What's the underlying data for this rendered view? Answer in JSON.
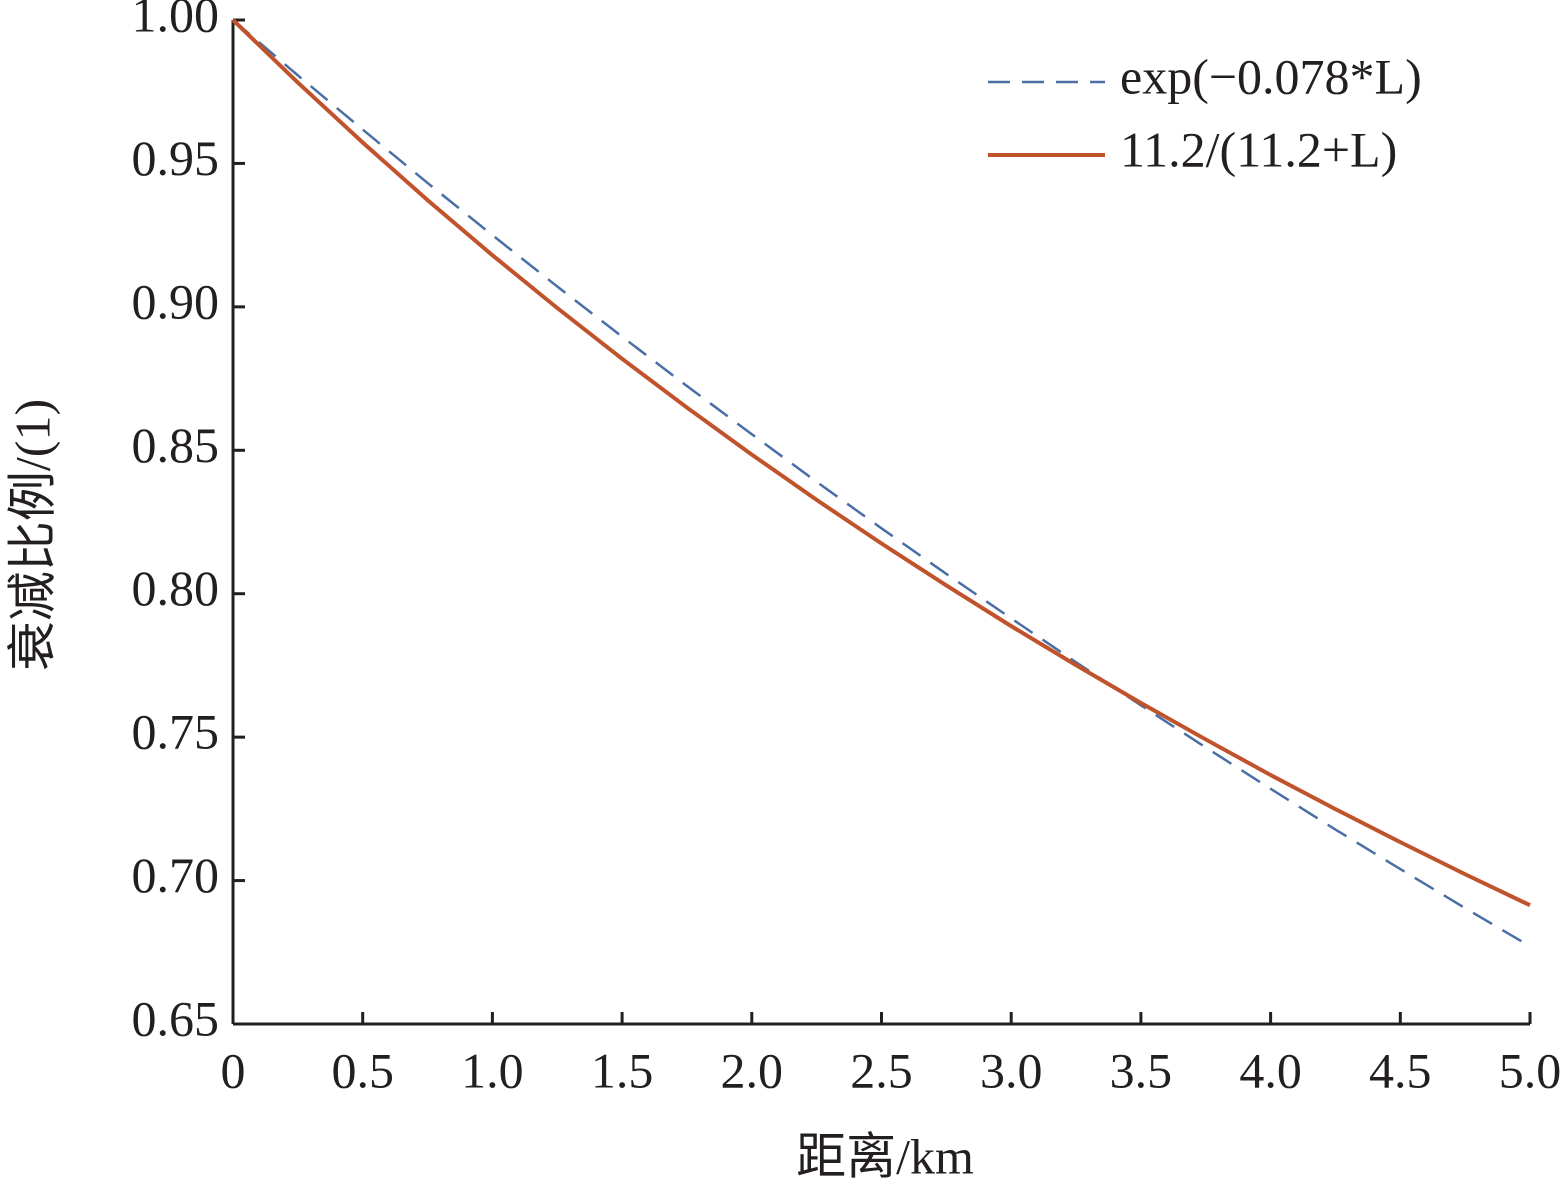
{
  "chart_data": {
    "type": "line",
    "x_label": "距离/km",
    "y_label": "衰减比例/(1)",
    "x": [
      0,
      0.25,
      0.5,
      0.75,
      1.0,
      1.25,
      1.5,
      1.75,
      2.0,
      2.25,
      2.5,
      2.75,
      3.0,
      3.25,
      3.5,
      3.75,
      4.0,
      4.25,
      4.5,
      4.75,
      5.0
    ],
    "series": [
      {
        "name": "exp(−0.078*L)",
        "color": "#4a6fa5",
        "style": "dashed",
        "values": [
          1,
          0.9807,
          0.9618,
          0.9432,
          0.925,
          0.9071,
          0.8896,
          0.8724,
          0.8556,
          0.839,
          0.8228,
          0.8069,
          0.7914,
          0.7761,
          0.7611,
          0.7464,
          0.732,
          0.7178,
          0.704,
          0.6904,
          0.6771
        ]
      },
      {
        "name": "11.2/(11.2+L)",
        "color": "#c0532b",
        "style": "solid",
        "values": [
          1,
          0.9782,
          0.9573,
          0.9372,
          0.918,
          0.8996,
          0.8819,
          0.8649,
          0.8485,
          0.8327,
          0.8175,
          0.8029,
          0.7887,
          0.7751,
          0.7619,
          0.7492,
          0.7368,
          0.7249,
          0.7134,
          0.7022,
          0.6914
        ]
      }
    ],
    "xlim": [
      0,
      5
    ],
    "ylim": [
      0.65,
      1
    ],
    "xticks": [
      0,
      0.5,
      {
        "value": 1,
        "label": "1.0"
      },
      1.5,
      {
        "value": 2,
        "label": "2.0"
      },
      2.5,
      {
        "value": 3,
        "label": "3.0"
      },
      3.5,
      {
        "value": 4,
        "label": "4.0"
      },
      4.5,
      {
        "value": 5,
        "label": "5.0"
      }
    ],
    "yticks": [
      0.65,
      {
        "value": 0.7,
        "label": "0.70"
      },
      0.75,
      {
        "value": 0.8,
        "label": "0.80"
      },
      0.85,
      {
        "value": 0.9,
        "label": "0.90"
      },
      0.95,
      {
        "value": 1,
        "label": "1.00"
      }
    ],
    "grid": false,
    "legend": "upper right"
  }
}
